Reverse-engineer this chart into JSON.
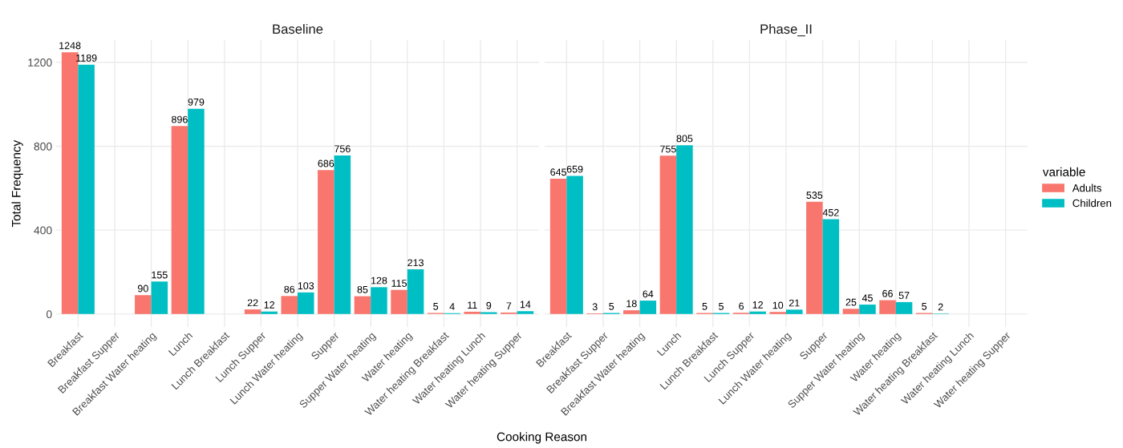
{
  "chart_data": [
    {
      "type": "bar",
      "title": "Baseline",
      "xlabel": "Cooking Reason",
      "ylabel": "Total Frequency",
      "categories": [
        "Breakfast",
        "Breakfast Supper",
        "Breakfast Water heating",
        "Lunch",
        "Lunch Breakfast",
        "Lunch Supper",
        "Lunch Water heating",
        "Supper",
        "Supper Water heating",
        "Water heating",
        "Water heating Breakfast",
        "Water heating Lunch",
        "Water heating Supper"
      ],
      "series": [
        {
          "name": "Adults",
          "color": "#f8766d",
          "values": [
            1248,
            null,
            90,
            896,
            null,
            22,
            86,
            686,
            85,
            115,
            5,
            11,
            7
          ]
        },
        {
          "name": "Children",
          "color": "#00bfc4",
          "values": [
            1189,
            null,
            155,
            979,
            null,
            12,
            103,
            756,
            128,
            213,
            4,
            9,
            14
          ]
        }
      ],
      "ylim": [
        -62,
        1305
      ],
      "yticks": [
        0,
        400,
        800,
        1200
      ],
      "grid": true,
      "data_labels": true,
      "legend": "right",
      "legend_title": "variable"
    },
    {
      "type": "bar",
      "title": "Phase_II",
      "categories": [
        "Breakfast",
        "Breakfast Supper",
        "Breakfast Water heating",
        "Lunch",
        "Lunch Breakfast",
        "Lunch Supper",
        "Lunch Water heating",
        "Supper",
        "Supper Water heating",
        "Water heating",
        "Water heating Breakfast",
        "Water heating Lunch",
        "Water heating Supper"
      ],
      "series": [
        {
          "color": "#f8766d",
          "values": [
            645,
            3,
            18,
            755,
            5,
            6,
            10,
            535,
            25,
            66,
            5,
            null,
            null
          ]
        },
        {
          "color": "#00bfc4",
          "values": [
            659,
            5,
            64,
            805,
            5,
            12,
            21,
            452,
            45,
            57,
            2,
            null,
            null
          ]
        }
      ],
      "ylim": [
        -62,
        1305
      ],
      "yticks": [
        0,
        400,
        800,
        1200
      ],
      "grid": true,
      "data_labels": true,
      "tick_labels": "x"
    }
  ]
}
